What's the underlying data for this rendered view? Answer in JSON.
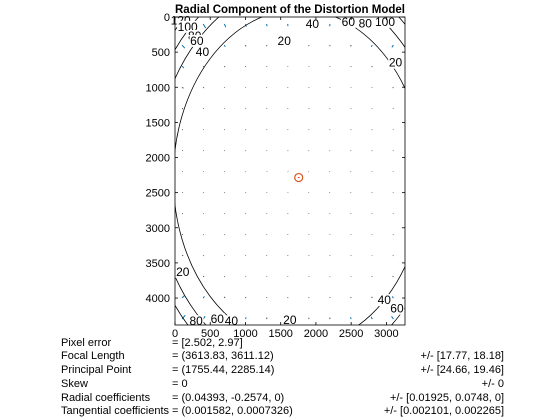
{
  "chart_data": {
    "type": "contour",
    "title": "Radial Component of the Distortion Model",
    "x_ticks": [
      0,
      500,
      1000,
      1500,
      2000,
      2500,
      3000
    ],
    "y_ticks": [
      0,
      500,
      1000,
      1500,
      2000,
      2500,
      3000,
      3500,
      4000
    ],
    "xlim": [
      0,
      3264
    ],
    "ylim": [
      0,
      4384
    ],
    "y_reversed": true,
    "grid": false,
    "principal_point": [
      1755.44,
      2285.14
    ],
    "contour_levels": [
      20,
      40,
      60,
      80,
      100,
      120
    ],
    "contour_labels": [
      {
        "text": "20",
        "x": 1550,
        "y": 340
      },
      {
        "text": "40",
        "x": 1950,
        "y": 100
      },
      {
        "text": "60",
        "x": 2460,
        "y": 70
      },
      {
        "text": "80",
        "x": 2700,
        "y": 90
      },
      {
        "text": "100",
        "x": 2980,
        "y": 70
      },
      {
        "text": "20",
        "x": 3130,
        "y": 650
      },
      {
        "text": "120",
        "x": 80,
        "y": 50
      },
      {
        "text": "100",
        "x": 180,
        "y": 140
      },
      {
        "text": "80",
        "x": 280,
        "y": 270
      },
      {
        "text": "60",
        "x": 310,
        "y": 340
      },
      {
        "text": "40",
        "x": 390,
        "y": 500
      },
      {
        "text": "20",
        "x": 110,
        "y": 3630
      },
      {
        "text": "20",
        "x": 1630,
        "y": 4310
      },
      {
        "text": "40",
        "x": 800,
        "y": 4330
      },
      {
        "text": "60",
        "x": 600,
        "y": 4300
      },
      {
        "text": "80",
        "x": 300,
        "y": 4330
      },
      {
        "text": "40",
        "x": 2970,
        "y": 4030
      },
      {
        "text": "60",
        "x": 3150,
        "y": 4150
      }
    ]
  },
  "calibration": {
    "rows": [
      {
        "label": "Pixel error",
        "value": "= [2.502, 2.97]",
        "error": ""
      },
      {
        "label": "Focal Length",
        "value": "= (3613.83, 3611.12)",
        "error": "+/- [17.77, 18.18]"
      },
      {
        "label": "Principal Point",
        "value": "= (1755.44, 2285.14)",
        "error": "+/- [24.66, 19.46]"
      },
      {
        "label": "Skew",
        "value": "= 0",
        "error": "+/- 0"
      },
      {
        "label": "Radial coefficients",
        "value": "= (0.04393, -0.2574, 0)",
        "error": "+/- [0.01925, 0.0748, 0]"
      },
      {
        "label": "Tangential coefficients",
        "value": "= (0.001582, 0.0007326)",
        "error": "+/- [0.002101, 0.002265]"
      }
    ]
  },
  "colors": {
    "axis": "#000000",
    "contour": "#000000",
    "arrows": "#0072bd",
    "principal_point": "#d95319",
    "center_marker": "#d95319"
  }
}
